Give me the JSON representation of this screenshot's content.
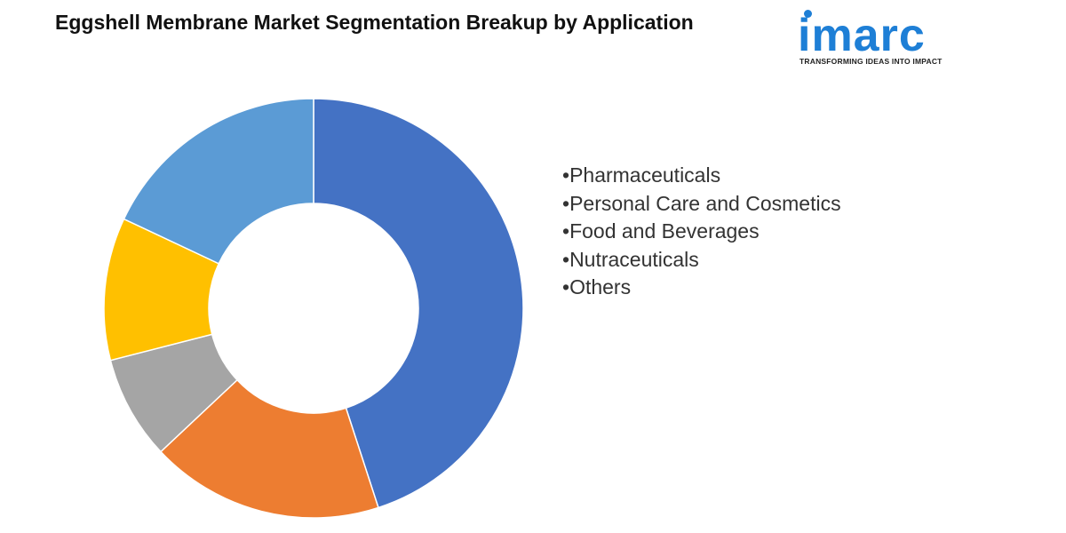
{
  "header": {
    "title": "Eggshell Membrane Market Segmentation Breakup by Application"
  },
  "logo": {
    "wordmark": "imarc",
    "tagline": "TRANSFORMING IDEAS INTO IMPACT",
    "color": "#1e7fd6"
  },
  "legend": {
    "bullet": "•",
    "items": [
      "Pharmaceuticals",
      "Personal Care and Cosmetics",
      "Food and Beverages",
      "Nutraceuticals",
      "Others"
    ]
  },
  "chart_data": {
    "type": "pie",
    "variant": "donut",
    "title": "",
    "legend_position": "right",
    "categories": [
      "Pharmaceuticals",
      "Personal Care and Cosmetics",
      "Food and Beverages",
      "Nutraceuticals",
      "Others"
    ],
    "values": [
      45,
      18,
      8,
      11,
      18
    ],
    "colors": [
      "#4472c4",
      "#ed7d31",
      "#a5a5a5",
      "#ffc000",
      "#5b9bd5"
    ]
  }
}
